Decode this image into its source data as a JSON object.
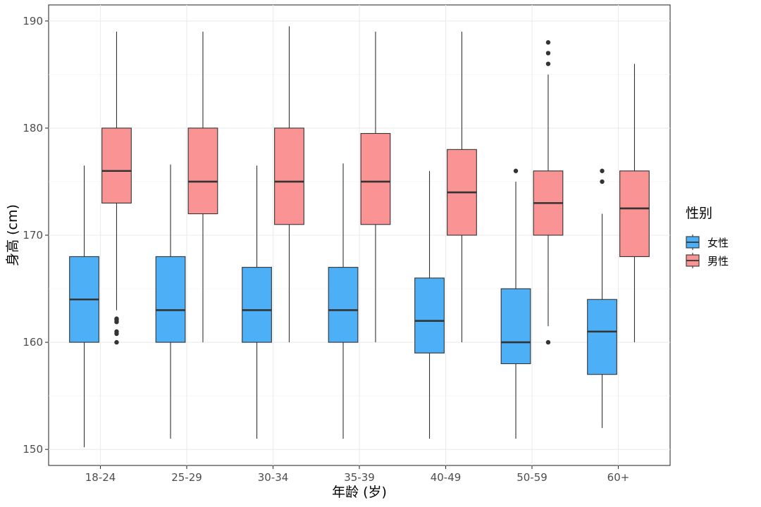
{
  "chart_data": {
    "type": "boxplot",
    "xlabel": "年龄 (岁)",
    "ylabel": "身高 (cm)",
    "ylim": [
      148.5,
      191.5
    ],
    "yticks": [
      150,
      160,
      170,
      180,
      190
    ],
    "categories": [
      "18-24",
      "25-29",
      "30-34",
      "35-39",
      "40-49",
      "50-59",
      "60+"
    ],
    "grid": true,
    "legend": {
      "title": "性别",
      "position": "right",
      "entries": [
        "女性",
        "男性"
      ]
    },
    "series": [
      {
        "name": "女性",
        "color": "#4daff5",
        "boxes": [
          {
            "min": 150.2,
            "q1": 160,
            "median": 164,
            "q3": 168,
            "max": 176.5,
            "outliers": []
          },
          {
            "min": 151,
            "q1": 160,
            "median": 163,
            "q3": 168,
            "max": 176.6,
            "outliers": []
          },
          {
            "min": 151,
            "q1": 160,
            "median": 163,
            "q3": 167,
            "max": 176.5,
            "outliers": []
          },
          {
            "min": 151,
            "q1": 160,
            "median": 163,
            "q3": 167,
            "max": 176.7,
            "outliers": []
          },
          {
            "min": 151,
            "q1": 159,
            "median": 162,
            "q3": 166,
            "max": 176,
            "outliers": []
          },
          {
            "min": 151,
            "q1": 158,
            "median": 160,
            "q3": 165,
            "max": 175,
            "outliers": [
              176
            ]
          },
          {
            "min": 152,
            "q1": 157,
            "median": 161,
            "q3": 164,
            "max": 172,
            "outliers": [
              175,
              176
            ]
          }
        ]
      },
      {
        "name": "男性",
        "color": "#fa9393",
        "boxes": [
          {
            "min": 163,
            "q1": 173,
            "median": 176,
            "q3": 180,
            "max": 189,
            "outliers": [
              160,
              160.8,
              161,
              161.9,
              162.1,
              162.2
            ]
          },
          {
            "min": 160,
            "q1": 172,
            "median": 175,
            "q3": 180,
            "max": 189,
            "outliers": []
          },
          {
            "min": 160,
            "q1": 171,
            "median": 175,
            "q3": 180,
            "max": 189.5,
            "outliers": []
          },
          {
            "min": 160,
            "q1": 171,
            "median": 175,
            "q3": 179.5,
            "max": 189,
            "outliers": []
          },
          {
            "min": 160,
            "q1": 170,
            "median": 174,
            "q3": 178,
            "max": 189,
            "outliers": []
          },
          {
            "min": 161.5,
            "q1": 170,
            "median": 173,
            "q3": 176,
            "max": 185,
            "outliers": [
              160,
              186,
              187,
              188
            ]
          },
          {
            "min": 160,
            "q1": 168,
            "median": 172.5,
            "q3": 176,
            "max": 186,
            "outliers": []
          }
        ]
      }
    ]
  }
}
